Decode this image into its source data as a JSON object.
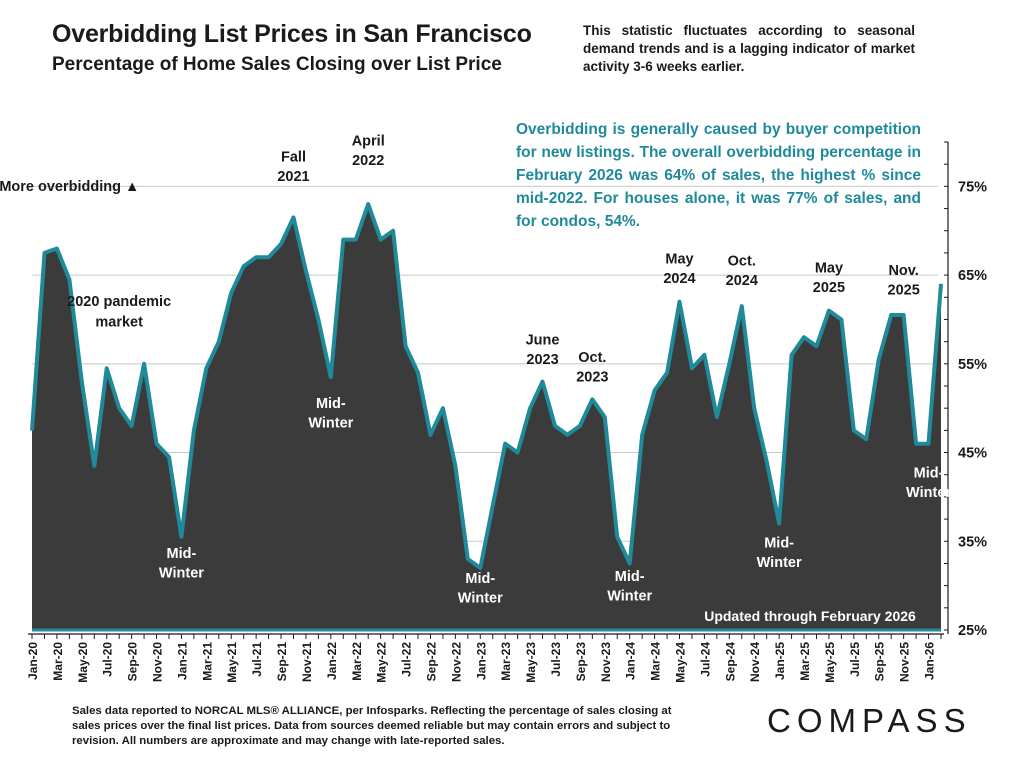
{
  "header": {
    "title": "Overbidding List Prices in San Francisco",
    "subtitle": "Percentage of Home Sales Closing over List Price",
    "note": "This statistic fluctuates according to seasonal demand trends and is a lagging indicator of market activity 3-6 weeks earlier."
  },
  "teal_note": "Overbidding is generally caused by buyer competition for new listings. The overall overbidding percentage in February 2026 was 64% of sales, the highest % since mid-2022. For houses alone, it was 77% of sales, and for condos, 54%.",
  "footer": {
    "source": "Sales data reported to NORCAL MLS® ALLIANCE, per Infosparks. Reflecting the percentage of sales closing at sales prices over the final list prices. Data from sources deemed reliable but may contain errors and subject to revision. All numbers are approximate and may change with late-reported sales.",
    "logo": "COMPASS"
  },
  "colors": {
    "fill": "#3b3b3b",
    "line": "#1f8a99",
    "teal_text": "#1f8a99",
    "grid": "#c8c8c8"
  },
  "chart_data": {
    "type": "area",
    "ylim": [
      25,
      80
    ],
    "yticks": [
      25,
      35,
      45,
      55,
      65,
      75
    ],
    "ytick_labels": [
      "25%",
      "35%",
      "45%",
      "55%",
      "65%",
      "75%"
    ],
    "xtick_labels": [
      "Jan-20",
      "Mar-20",
      "May-20",
      "Jul-20",
      "Sep-20",
      "Nov-20",
      "Jan-21",
      "Mar-21",
      "May-21",
      "Jul-21",
      "Sep-21",
      "Nov-21",
      "Jan-22",
      "Mar-22",
      "May-22",
      "Jul-22",
      "Sep-22",
      "Nov-22",
      "Jan-23",
      "Mar-23",
      "May-23",
      "Jul-23",
      "Sep-23",
      "Nov-23",
      "Jan-24",
      "Mar-24",
      "May-24",
      "Jul-24",
      "Sep-24",
      "Nov-24",
      "Jan-25",
      "Mar-25",
      "May-25",
      "Jul-25",
      "Sep-25",
      "Nov-25",
      "Jan-26"
    ],
    "x": [
      "Jan-20",
      "Feb-20",
      "Mar-20",
      "Apr-20",
      "May-20",
      "Jun-20",
      "Jul-20",
      "Aug-20",
      "Sep-20",
      "Oct-20",
      "Nov-20",
      "Dec-20",
      "Jan-21",
      "Feb-21",
      "Mar-21",
      "Apr-21",
      "May-21",
      "Jun-21",
      "Jul-21",
      "Aug-21",
      "Sep-21",
      "Oct-21",
      "Nov-21",
      "Dec-21",
      "Jan-22",
      "Feb-22",
      "Mar-22",
      "Apr-22",
      "May-22",
      "Jun-22",
      "Jul-22",
      "Aug-22",
      "Sep-22",
      "Oct-22",
      "Nov-22",
      "Dec-22",
      "Jan-23",
      "Feb-23",
      "Mar-23",
      "Apr-23",
      "May-23",
      "Jun-23",
      "Jul-23",
      "Aug-23",
      "Sep-23",
      "Oct-23",
      "Nov-23",
      "Dec-23",
      "Jan-24",
      "Feb-24",
      "Mar-24",
      "Apr-24",
      "May-24",
      "Jun-24",
      "Jul-24",
      "Aug-24",
      "Sep-24",
      "Oct-24",
      "Nov-24",
      "Dec-24",
      "Jan-25",
      "Feb-25",
      "Mar-25",
      "Apr-25",
      "May-25",
      "Jun-25",
      "Jul-25",
      "Aug-25",
      "Sep-25",
      "Oct-25",
      "Nov-25",
      "Dec-25",
      "Jan-26",
      "Feb-26"
    ],
    "values": [
      47.5,
      67.5,
      68,
      64.5,
      53,
      43.5,
      54.5,
      50,
      48,
      55,
      46,
      44.5,
      35.5,
      47.5,
      54.5,
      57.5,
      63,
      66,
      67,
      67,
      68.5,
      71.5,
      65.5,
      60,
      53.5,
      69,
      69,
      73,
      69,
      70,
      57,
      54,
      47,
      50,
      43.5,
      33,
      32,
      39,
      46,
      45,
      50,
      53,
      48,
      47,
      48,
      51,
      49,
      35.5,
      32.5,
      47,
      52,
      54,
      62,
      54.5,
      56,
      49,
      55,
      61.5,
      50,
      44,
      37,
      56,
      58,
      57,
      61,
      60,
      47.5,
      46.5,
      55.5,
      60.5,
      60.5,
      46,
      46,
      64
    ],
    "annotations": [
      {
        "text": "More overbidding ▲",
        "x": "Apr-20",
        "y": 74.5
      },
      {
        "text": "2020 pandemic",
        "x": "Aug-20",
        "y": 61.5
      },
      {
        "text": "market",
        "x": "Aug-20",
        "y": 59.2
      },
      {
        "text": "Fall",
        "x": "Oct-21",
        "y": 77.8
      },
      {
        "text": "2021",
        "x": "Oct-21",
        "y": 75.6
      },
      {
        "text": "April",
        "x": "Apr-22",
        "y": 79.6
      },
      {
        "text": "2022",
        "x": "Apr-22",
        "y": 77.4
      },
      {
        "text": "June",
        "x": "Jun-23",
        "y": 57.2
      },
      {
        "text": "2023",
        "x": "Jun-23",
        "y": 55
      },
      {
        "text": "Oct.",
        "x": "Oct-23",
        "y": 55.2
      },
      {
        "text": "2023",
        "x": "Oct-23",
        "y": 53
      },
      {
        "text": "May",
        "x": "May-24",
        "y": 66.3
      },
      {
        "text": "2024",
        "x": "May-24",
        "y": 64.1
      },
      {
        "text": "Oct.",
        "x": "Oct-24",
        "y": 66.1
      },
      {
        "text": "2024",
        "x": "Oct-24",
        "y": 63.9
      },
      {
        "text": "May",
        "x": "May-25",
        "y": 65.3
      },
      {
        "text": "2025",
        "x": "May-25",
        "y": 63.1
      },
      {
        "text": "Nov.",
        "x": "Nov-25",
        "y": 65
      },
      {
        "text": "2025",
        "x": "Nov-25",
        "y": 62.8
      }
    ],
    "inner_labels": [
      {
        "text": "Mid-",
        "x": "Jan-22",
        "y": 50
      },
      {
        "text": "Winter",
        "x": "Jan-22",
        "y": 47.8
      },
      {
        "text": "Mid-",
        "x": "Jan-21",
        "y": 33.1
      },
      {
        "text": "Winter",
        "x": "Jan-21",
        "y": 30.9
      },
      {
        "text": "Mid-",
        "x": "Jan-23",
        "y": 30.3
      },
      {
        "text": "Winter",
        "x": "Jan-23",
        "y": 28.1
      },
      {
        "text": "Mid-",
        "x": "Jan-24",
        "y": 30.5
      },
      {
        "text": "Winter",
        "x": "Jan-24",
        "y": 28.3
      },
      {
        "text": "Mid-",
        "x": "Jan-25",
        "y": 34.3
      },
      {
        "text": "Winter",
        "x": "Jan-25",
        "y": 32.1
      },
      {
        "text": "Mid-",
        "x": "Jan-26",
        "y": 42.2
      },
      {
        "text": "Winter",
        "x": "Jan-26",
        "y": 40
      }
    ],
    "updated_label": "Updated through February 2026"
  }
}
